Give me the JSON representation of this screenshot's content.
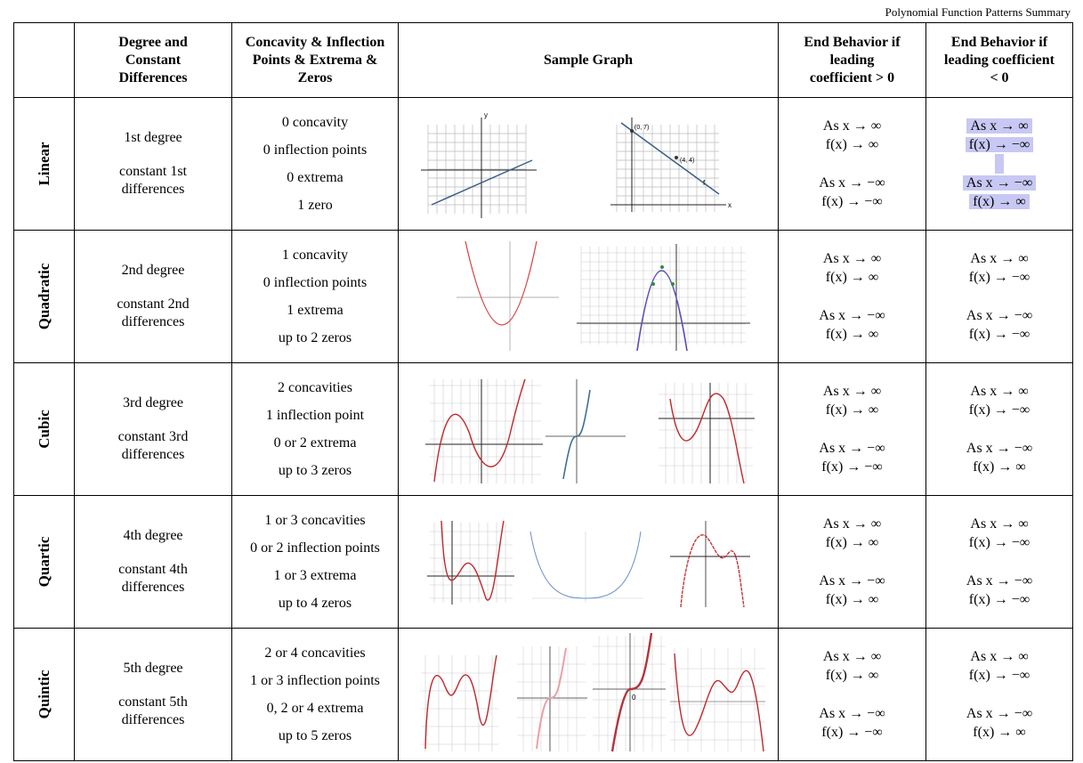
{
  "document": {
    "title": "Polynomial Function Patterns Summary"
  },
  "headers": {
    "degree": "Degree and Constant Differences",
    "concavity": "Concavity & Inflection Points & Extrema & Zeros",
    "graph": "Sample Graph",
    "end_pos": "End Behavior if leading coefficient > 0",
    "end_neg": "End Behavior if leading coefficient < 0"
  },
  "rows": [
    {
      "name": "Linear",
      "degree": "1st degree",
      "differences": "constant 1st differences",
      "props": [
        "0 concavity",
        "0 inflection points",
        "0 extrema",
        "1 zero"
      ],
      "pos": [
        "As x → ∞",
        "f(x) → ∞",
        "As x → −∞",
        "f(x) → −∞"
      ],
      "neg": [
        "As x → ∞",
        "f(x) → −∞",
        "As x → −∞",
        "f(x) → ∞"
      ]
    },
    {
      "name": "Quadratic",
      "degree": "2nd degree",
      "differences": "constant 2nd differences",
      "props": [
        "1 concavity",
        "0 inflection points",
        "1 extrema",
        "up to 2 zeros"
      ],
      "pos": [
        "As x → ∞",
        "f(x) → ∞",
        "As x → −∞",
        "f(x) → ∞"
      ],
      "neg": [
        "As x → ∞",
        "f(x) → −∞",
        "As x → −∞",
        "f(x) → −∞"
      ]
    },
    {
      "name": "Cubic",
      "degree": "3rd degree",
      "differences": "constant 3rd differences",
      "props": [
        "2 concavities",
        "1 inflection point",
        "0 or 2 extrema",
        "up to 3 zeros"
      ],
      "pos": [
        "As x → ∞",
        "f(x) → ∞",
        "As x → −∞",
        "f(x) → −∞"
      ],
      "neg": [
        "As x → ∞",
        "f(x) → −∞",
        "As x → −∞",
        "f(x) → ∞"
      ]
    },
    {
      "name": "Quartic",
      "degree": "4th degree",
      "differences": "constant 4th differences",
      "props": [
        "1 or 3 concavities",
        "0 or 2 inflection points",
        "1 or 3 extrema",
        "up to 4 zeros"
      ],
      "pos": [
        "As x → ∞",
        "f(x) → ∞",
        "As x → −∞",
        "f(x) → ∞"
      ],
      "neg": [
        "As x → ∞",
        "f(x) → −∞",
        "As x → −∞",
        "f(x) → −∞"
      ]
    },
    {
      "name": "Quintic",
      "degree": "5th degree",
      "differences": "constant 5th differences",
      "props": [
        "2 or 4 concavities",
        "1 or 3 inflection points",
        "0, 2 or 4 extrema",
        "up to 5 zeros"
      ],
      "pos": [
        "As x → ∞",
        "f(x) → ∞",
        "As x → −∞",
        "f(x) → −∞"
      ],
      "neg": [
        "As x → ∞",
        "f(x) → −∞",
        "As x → −∞",
        "f(x) → ∞"
      ]
    }
  ],
  "graph_labels": {
    "point_a": "(0, 7)",
    "point_b": "(4, 4)",
    "fn": "f",
    "x": "x",
    "y": "y",
    "zero": "0"
  },
  "colors": {
    "red_curve": "#c0282d",
    "blue_curve": "#3f6f95",
    "purple_curve": "#5a4ab5",
    "highlight": "#c8c8f4"
  }
}
